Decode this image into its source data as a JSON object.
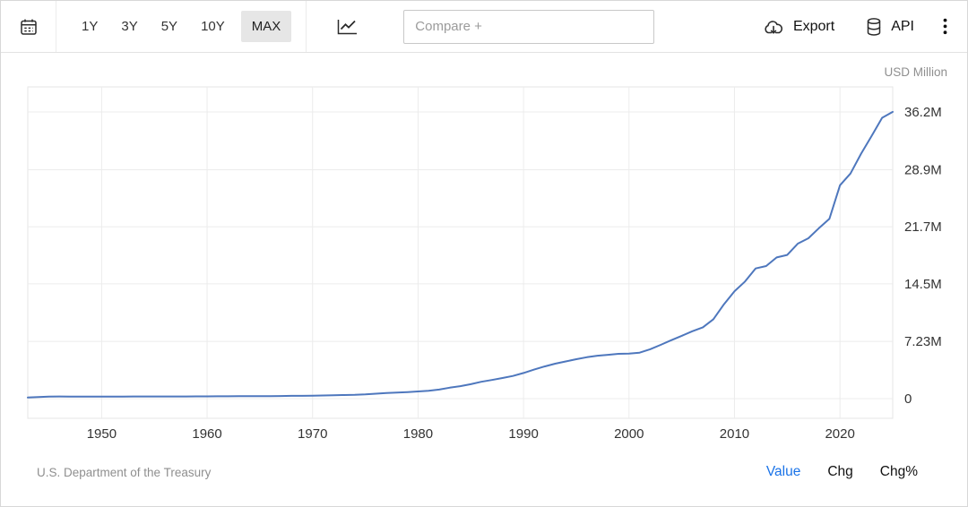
{
  "toolbar": {
    "ranges": [
      {
        "label": "1Y",
        "selected": false
      },
      {
        "label": "3Y",
        "selected": false
      },
      {
        "label": "5Y",
        "selected": false
      },
      {
        "label": "10Y",
        "selected": false
      },
      {
        "label": "MAX",
        "selected": true
      }
    ],
    "compare_placeholder": "Compare +",
    "export_label": "Export",
    "api_label": "API"
  },
  "chart": {
    "unit_label": "USD Million",
    "line_color": "#4e77bd",
    "grid_color": "#ececec",
    "border_color": "#e5e5e5"
  },
  "footer": {
    "source": "U.S. Department of the Treasury",
    "modes": [
      {
        "label": "Value",
        "active": true
      },
      {
        "label": "Chg",
        "active": false
      },
      {
        "label": "Chg%",
        "active": false
      }
    ]
  },
  "chart_data": {
    "type": "line",
    "title": "",
    "xlabel": "",
    "ylabel": "USD Million",
    "legend_position": "none",
    "grid": true,
    "xlim": [
      1943,
      2025
    ],
    "ylim": [
      0,
      36200000
    ],
    "xticks": [
      1950,
      1960,
      1970,
      1980,
      1990,
      2000,
      2010,
      2020
    ],
    "yticks": [
      {
        "value": 0,
        "label": "0"
      },
      {
        "value": 7230000,
        "label": "7.23M"
      },
      {
        "value": 14500000,
        "label": "14.5M"
      },
      {
        "value": 21700000,
        "label": "21.7M"
      },
      {
        "value": 28900000,
        "label": "28.9M"
      },
      {
        "value": 36200000,
        "label": "36.2M"
      }
    ],
    "x": [
      1943,
      1944,
      1945,
      1946,
      1947,
      1948,
      1949,
      1950,
      1951,
      1952,
      1953,
      1954,
      1955,
      1956,
      1957,
      1958,
      1959,
      1960,
      1961,
      1962,
      1963,
      1964,
      1965,
      1966,
      1967,
      1968,
      1969,
      1970,
      1971,
      1972,
      1973,
      1974,
      1975,
      1976,
      1977,
      1978,
      1979,
      1980,
      1981,
      1982,
      1983,
      1984,
      1985,
      1986,
      1987,
      1988,
      1989,
      1990,
      1991,
      1992,
      1993,
      1994,
      1995,
      1996,
      1997,
      1998,
      1999,
      2000,
      2001,
      2002,
      2003,
      2004,
      2005,
      2006,
      2007,
      2008,
      2009,
      2010,
      2011,
      2012,
      2013,
      2014,
      2015,
      2016,
      2017,
      2018,
      2019,
      2020,
      2021,
      2022,
      2023,
      2024,
      2025
    ],
    "values": [
      136696,
      201003,
      258682,
      269422,
      258286,
      252292,
      252770,
      257357,
      255222,
      259105,
      266071,
      271260,
      274374,
      272751,
      270527,
      276343,
      284706,
      286331,
      288971,
      298201,
      305860,
      311713,
      317274,
      319907,
      326221,
      347578,
      353720,
      370919,
      398130,
      427260,
      458142,
      475060,
      533189,
      620433,
      698840,
      771544,
      826519,
      907701,
      997855,
      1142034,
      1377210,
      1572266,
      1823103,
      2125303,
      2350277,
      2602337,
      2857431,
      3233313,
      3665303,
      4064621,
      4411489,
      4692750,
      4973983,
      5224811,
      5413146,
      5526193,
      5656271,
      5674178,
      5807463,
      6228236,
      6783231,
      7379053,
      7932710,
      8506974,
      9007653,
      10024725,
      11909829,
      13561623,
      14790340,
      16432730,
      16738184,
      17824071,
      18150618,
      19573445,
      20244900,
      21516058,
      22719402,
      26945391,
      28428919,
      30928912,
      33167334,
      35464674,
      36210000
    ],
    "source": "U.S. Department of the Treasury"
  }
}
